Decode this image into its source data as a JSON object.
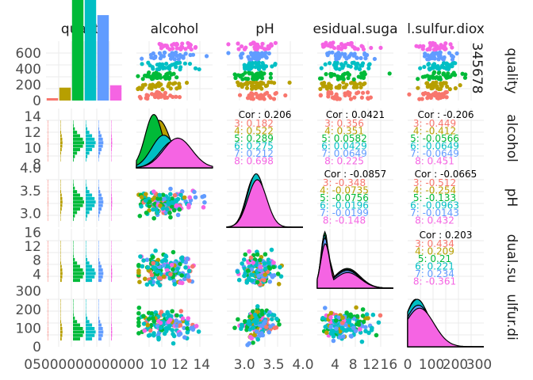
{
  "chart_data": {
    "type": "scatter",
    "title": "",
    "variables": [
      "quality",
      "alcohol",
      "pH",
      "residual.sugar",
      "total.sulfur.dioxide"
    ],
    "strip_labels_top": [
      "quality",
      "alcohol",
      "pH",
      "esidual.suga",
      "l.sulfur.diox"
    ],
    "strip_labels_right": [
      "quality",
      "alcohol",
      "pH",
      "dual.su",
      "ulfur.di"
    ],
    "quality_levels": [
      "3",
      "4",
      "5",
      "6",
      "7",
      "8"
    ],
    "level_colors": [
      "#F8766D",
      "#B79F00",
      "#00BA38",
      "#00BFC4",
      "#619CFF",
      "#F564E3"
    ],
    "quality_counts": [
      30,
      163,
      2138,
      2836,
      1079,
      193
    ],
    "ylim_quality_counts": [
      0,
      750
    ],
    "ranges": {
      "alcohol": [
        8,
        15
      ],
      "pH": [
        2.7,
        4.0
      ],
      "residual.sugar": [
        0,
        17
      ],
      "total.sulfur.dioxide": [
        0,
        320
      ]
    },
    "ticks": {
      "quality_count_y": [
        "0",
        "200",
        "400",
        "600"
      ],
      "alcohol": [
        "8",
        "10",
        "12",
        "14"
      ],
      "pH": [
        "3.0",
        "3.5",
        "4.0"
      ],
      "residual.sugar": [
        "4",
        "8",
        "12",
        "16"
      ],
      "total.sulfur.dioxide": [
        "0",
        "100",
        "200",
        "300"
      ],
      "residual_sugar_x": [
        "4",
        "8",
        "12",
        "16"
      ],
      "total_sulfur_x": [
        "0",
        "100",
        "200",
        "300"
      ],
      "bottom_axis_quality_overlap": "05000000000000"
    },
    "row1_right_digits": "345678",
    "correlations": [
      {
        "pair": "alcohol-pH",
        "overall": "Cor : 0.206",
        "groups": [
          "3: 0.182",
          "4: 0.522",
          "5: 0.289",
          "6: 0.275",
          "7: 0.212",
          "8: 0.698"
        ]
      },
      {
        "pair": "alcohol-residual.sugar",
        "overall": "Cor : 0.0421",
        "groups": [
          "3: 0.356",
          "4: 0.351",
          "5: 0.0582",
          "6: 0.0429",
          "7: 0.0649",
          "8: 0.225"
        ]
      },
      {
        "pair": "alcohol-total.sulfur.dioxide",
        "overall": "Cor : -0.206",
        "groups": [
          "3: -0.449",
          "4: -0.412",
          "5: -0.0566",
          "6: -0.0649",
          "7: -0.0649",
          "8: 0.451"
        ]
      },
      {
        "pair": "pH-residual.sugar",
        "overall": "Cor : -0.0857",
        "groups": [
          "3: -0.348",
          "4: -0.0735",
          "5: -0.0756",
          "6: -0.0196",
          "7: -0.0199",
          "8: -0.148"
        ]
      },
      {
        "pair": "pH-total.sulfur.dioxide",
        "overall": "Cor : -0.0665",
        "groups": [
          "3: -0.512",
          "4: -0.254",
          "5: -0.133",
          "6: -0.0963",
          "7: -0.0143",
          "8: 0.432"
        ]
      },
      {
        "pair": "residual.sugar-total.sulfur.dioxide",
        "overall": "Cor : 0.203",
        "groups": [
          "3: 0.434",
          "4: 0.209",
          "5: 0.21",
          "6: 0.221",
          "7: 0.234",
          "8: -0.361"
        ]
      }
    ],
    "grid": true,
    "legend": "none"
  }
}
